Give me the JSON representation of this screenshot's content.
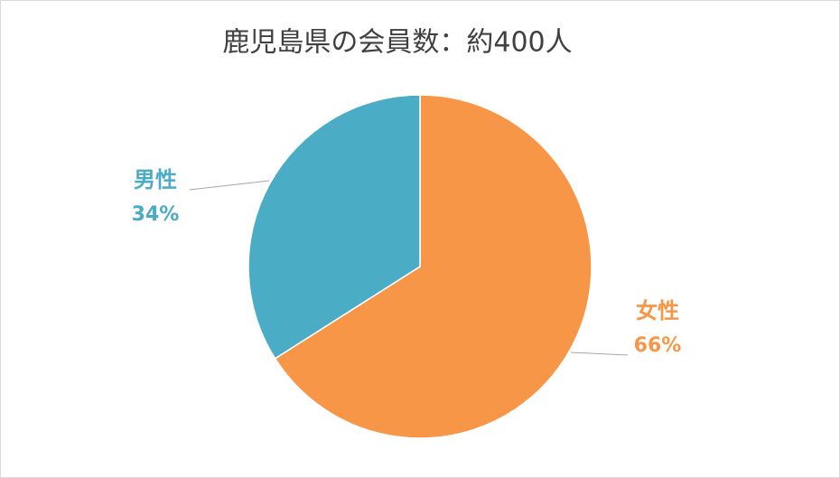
{
  "chart_data": {
    "type": "pie",
    "title": "鹿児島県の会員数：約400人",
    "categories": [
      "女性",
      "男性"
    ],
    "values": [
      66,
      34
    ],
    "value_labels": [
      "66%",
      "34%"
    ],
    "colors": [
      "#f79646",
      "#4bacc6"
    ]
  }
}
